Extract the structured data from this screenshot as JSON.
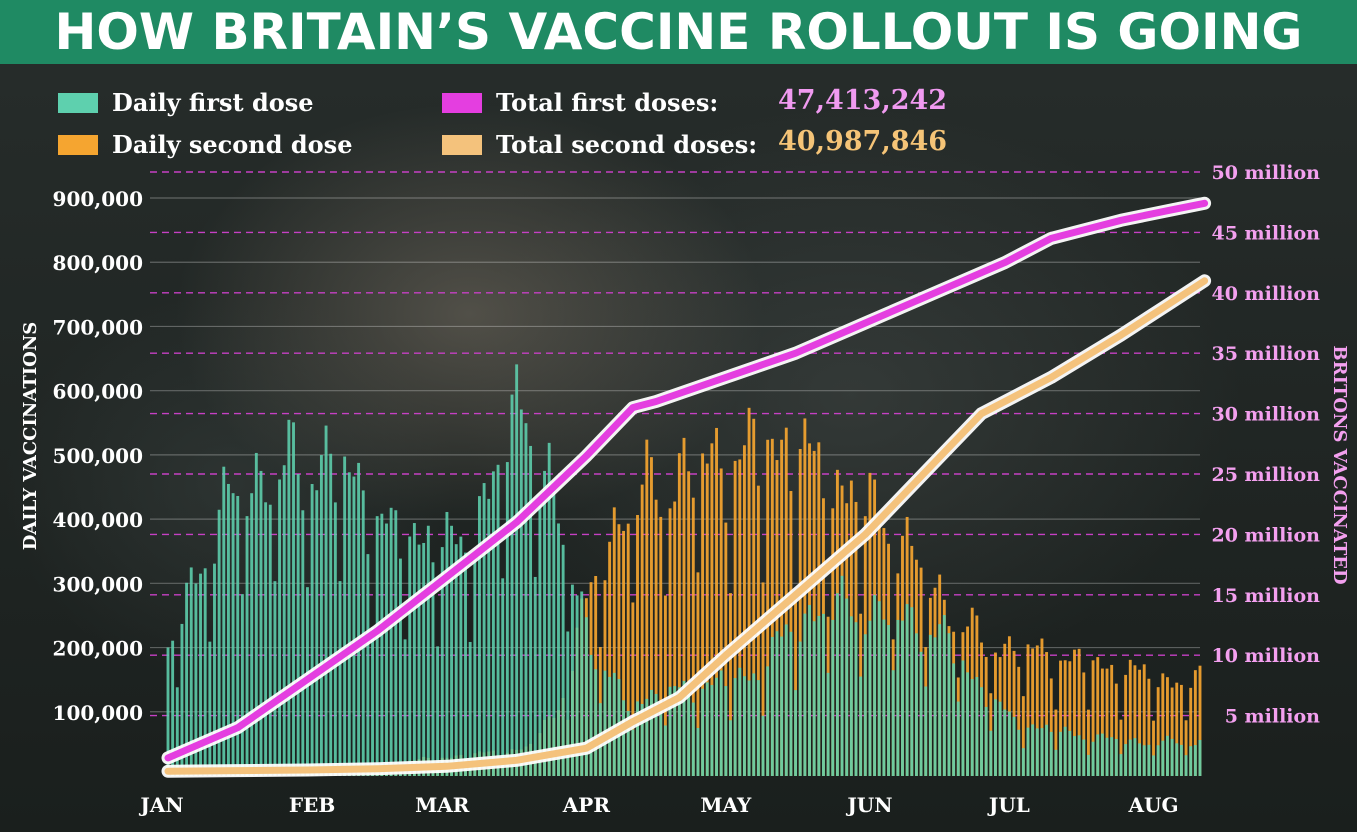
{
  "title": "HOW BRITAIN’S VACCINE ROLLOUT IS GOING",
  "colors": {
    "header_bg": "#1f8a63",
    "first_dose": "#5ed0ae",
    "second_dose": "#f5a530",
    "total_first": "#e43ee0",
    "total_second": "#f4c27c",
    "total_first_value_text": "#f09af0",
    "total_second_value_text": "#f5c477",
    "right_axis_text": "#f3a0ef"
  },
  "legend": {
    "daily_first": "Daily first dose",
    "daily_second": "Daily second dose",
    "total_first_label": "Total first doses:",
    "total_first_value": "47,413,242",
    "total_second_label": "Total second doses:",
    "total_second_value": "40,987,846"
  },
  "chart_data": {
    "type": "bar",
    "title": "HOW BRITAIN’S VACCINE ROLLOUT IS GOING",
    "xlabel": "",
    "ylabel": "DAILY VACCINATIONS",
    "y2label": "BRITONS VACCINATED",
    "ylim": [
      0,
      900000
    ],
    "y2lim": [
      0,
      50000000
    ],
    "yticks": [
      "100,000",
      "200,000",
      "300,000",
      "400,000",
      "500,000",
      "600,000",
      "700,000",
      "800,000",
      "900,000"
    ],
    "y2ticks": [
      "5 million",
      "10 million",
      "15 million",
      "20 million",
      "25 million",
      "30 million",
      "35 million",
      "40 million",
      "45 million",
      "50 million"
    ],
    "x_months": [
      "JAN",
      "FEB",
      "MAR",
      "APR",
      "MAY",
      "JUN",
      "JUL",
      "AUG"
    ],
    "daily_days": 223,
    "series": [
      {
        "name": "Daily first dose",
        "kind": "bar",
        "weekly_knots": [
          180000,
          320000,
          420000,
          450000,
          460000,
          470000,
          420000,
          350000,
          360000,
          330000,
          450000,
          560000,
          380000,
          200000,
          110000,
          120000,
          130000,
          140000,
          150000,
          210000,
          250000,
          250000,
          240000,
          230000,
          200000,
          130000,
          80000,
          70000,
          60000,
          55000,
          50000,
          50000
        ]
      },
      {
        "name": "Daily second dose",
        "kind": "bar",
        "weekly_knots": [
          15000,
          15000,
          12000,
          10000,
          10000,
          12000,
          15000,
          20000,
          25000,
          30000,
          35000,
          40000,
          100000,
          280000,
          400000,
          430000,
          460000,
          470000,
          480000,
          500000,
          450000,
          420000,
          380000,
          320000,
          250000,
          200000,
          190000,
          180000,
          170000,
          160000,
          150000,
          140000
        ]
      },
      {
        "name": "Total first doses",
        "kind": "line",
        "axis": "right",
        "points": [
          [
            0,
            1.5
          ],
          [
            15,
            4.0
          ],
          [
            30,
            8.0
          ],
          [
            45,
            12.0
          ],
          [
            60,
            16.5
          ],
          [
            75,
            21.0
          ],
          [
            90,
            26.5
          ],
          [
            100,
            30.5
          ],
          [
            105,
            31.0
          ],
          [
            120,
            33.0
          ],
          [
            135,
            35.0
          ],
          [
            150,
            37.5
          ],
          [
            165,
            40.0
          ],
          [
            180,
            42.5
          ],
          [
            190,
            44.5
          ],
          [
            205,
            46.0
          ],
          [
            215,
            46.8
          ],
          [
            223,
            47.41
          ]
        ]
      },
      {
        "name": "Total second doses",
        "kind": "line",
        "axis": "right",
        "points": [
          [
            0,
            0.4
          ],
          [
            15,
            0.45
          ],
          [
            30,
            0.5
          ],
          [
            45,
            0.6
          ],
          [
            60,
            0.8
          ],
          [
            75,
            1.3
          ],
          [
            90,
            2.3
          ],
          [
            100,
            4.5
          ],
          [
            110,
            6.5
          ],
          [
            120,
            10.0
          ],
          [
            135,
            15.0
          ],
          [
            150,
            20.0
          ],
          [
            165,
            26.0
          ],
          [
            175,
            30.0
          ],
          [
            190,
            33.0
          ],
          [
            205,
            36.5
          ],
          [
            215,
            39.0
          ],
          [
            223,
            40.99
          ]
        ]
      }
    ],
    "legend_position": "top",
    "grid": true
  }
}
